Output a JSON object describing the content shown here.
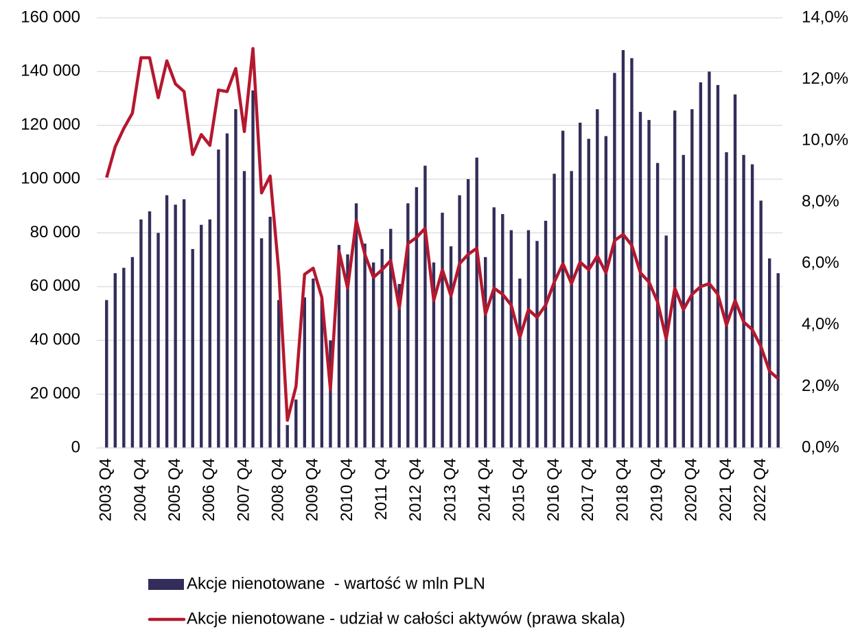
{
  "chart_data": {
    "type": "bar-line",
    "categories": [
      "2003 Q4",
      null,
      null,
      null,
      "2004 Q4",
      null,
      null,
      null,
      "2005 Q4",
      null,
      null,
      null,
      "2006 Q4",
      null,
      null,
      null,
      "2007 Q4",
      null,
      null,
      null,
      "2008 Q4",
      null,
      null,
      null,
      "2009 Q4",
      null,
      null,
      null,
      "2010 Q4",
      null,
      null,
      null,
      "2011 Q4",
      null,
      null,
      null,
      "2012 Q4",
      null,
      null,
      null,
      "2013 Q4",
      null,
      null,
      null,
      "2014 Q4",
      null,
      null,
      null,
      "2015 Q4",
      null,
      null,
      null,
      "2016 Q4",
      null,
      null,
      null,
      "2017 Q4",
      null,
      null,
      null,
      "2018 Q4",
      null,
      null,
      null,
      "2019 Q4",
      null,
      null,
      null,
      "2020 Q4",
      null,
      null,
      null,
      "2021 Q4",
      null,
      null,
      null,
      "2022 Q4",
      null,
      null
    ],
    "series": [
      {
        "name": "Akcje nienotowane  - wartość w mln PLN",
        "type": "bar",
        "color": "#332d5a",
        "values": [
          55000,
          65000,
          67000,
          71000,
          85000,
          88000,
          80000,
          94000,
          90500,
          92500,
          74000,
          83000,
          85000,
          111000,
          117000,
          126000,
          103000,
          133000,
          78000,
          86000,
          55000,
          8500,
          18000,
          56000,
          63000,
          55000,
          40000,
          75500,
          72000,
          91000,
          76000,
          69000,
          74000,
          81500,
          61000,
          91000,
          97000,
          105000,
          69000,
          87500,
          75000,
          94000,
          100000,
          108000,
          71000,
          89500,
          87000,
          81000,
          63000,
          81000,
          77000,
          84500,
          102000,
          118000,
          103000,
          121000,
          115000,
          126000,
          116000,
          139500,
          148000,
          145000,
          125000,
          122000,
          106000,
          79000,
          125500,
          109000,
          126000,
          136000,
          140000,
          135000,
          110000,
          131500,
          109000,
          105500,
          92000,
          70500,
          65000
        ]
      },
      {
        "name": "Akcje nienotowane - udział w całości aktywów (prawa skala)",
        "type": "line",
        "axis": "y2",
        "color": "#b5182f",
        "values": [
          8.8,
          9.8,
          10.4,
          10.9,
          12.7,
          12.7,
          11.4,
          12.6,
          11.85,
          11.6,
          9.55,
          10.2,
          9.85,
          11.65,
          11.6,
          12.35,
          10.3,
          13.0,
          8.3,
          8.85,
          5.75,
          0.9,
          2.0,
          5.65,
          5.85,
          4.9,
          1.9,
          6.4,
          5.2,
          7.4,
          6.3,
          5.55,
          5.8,
          6.1,
          4.55,
          6.65,
          6.85,
          7.15,
          4.8,
          5.8,
          4.95,
          6.0,
          6.3,
          6.5,
          4.35,
          5.2,
          5.0,
          4.65,
          3.6,
          4.5,
          4.25,
          4.65,
          5.4,
          6.0,
          5.35,
          6.05,
          5.8,
          6.25,
          5.7,
          6.75,
          6.95,
          6.6,
          5.7,
          5.4,
          4.75,
          3.55,
          5.2,
          4.5,
          5.0,
          5.25,
          5.35,
          5.0,
          4.0,
          4.8,
          4.1,
          3.85,
          3.3,
          2.5,
          2.25
        ]
      }
    ],
    "ylim": [
      0,
      160000
    ],
    "yticks": [
      0,
      {
        "value": 20000,
        "label": "20 000"
      },
      {
        "value": 40000,
        "label": "40 000"
      },
      {
        "value": 60000,
        "label": "60 000"
      },
      {
        "value": 80000,
        "label": "80 000"
      },
      {
        "value": 100000,
        "label": "100 000"
      },
      {
        "value": 120000,
        "label": "120 000"
      },
      {
        "value": 140000,
        "label": "140 000"
      },
      {
        "value": 160000,
        "label": "160 000"
      }
    ],
    "y2lim": [
      0,
      14
    ],
    "y2ticks": [
      {
        "value": 0,
        "label": "0,0%"
      },
      {
        "value": 2,
        "label": "2,0%"
      },
      {
        "value": 4,
        "label": "4,0%"
      },
      {
        "value": 6,
        "label": "6,0%"
      },
      {
        "value": 8,
        "label": "8,0%"
      },
      {
        "value": 10,
        "label": "10,0%"
      },
      {
        "value": 12,
        "label": "12,0%"
      },
      {
        "value": 14,
        "label": "14,0%"
      }
    ],
    "grid": true,
    "legend": "bottom"
  }
}
